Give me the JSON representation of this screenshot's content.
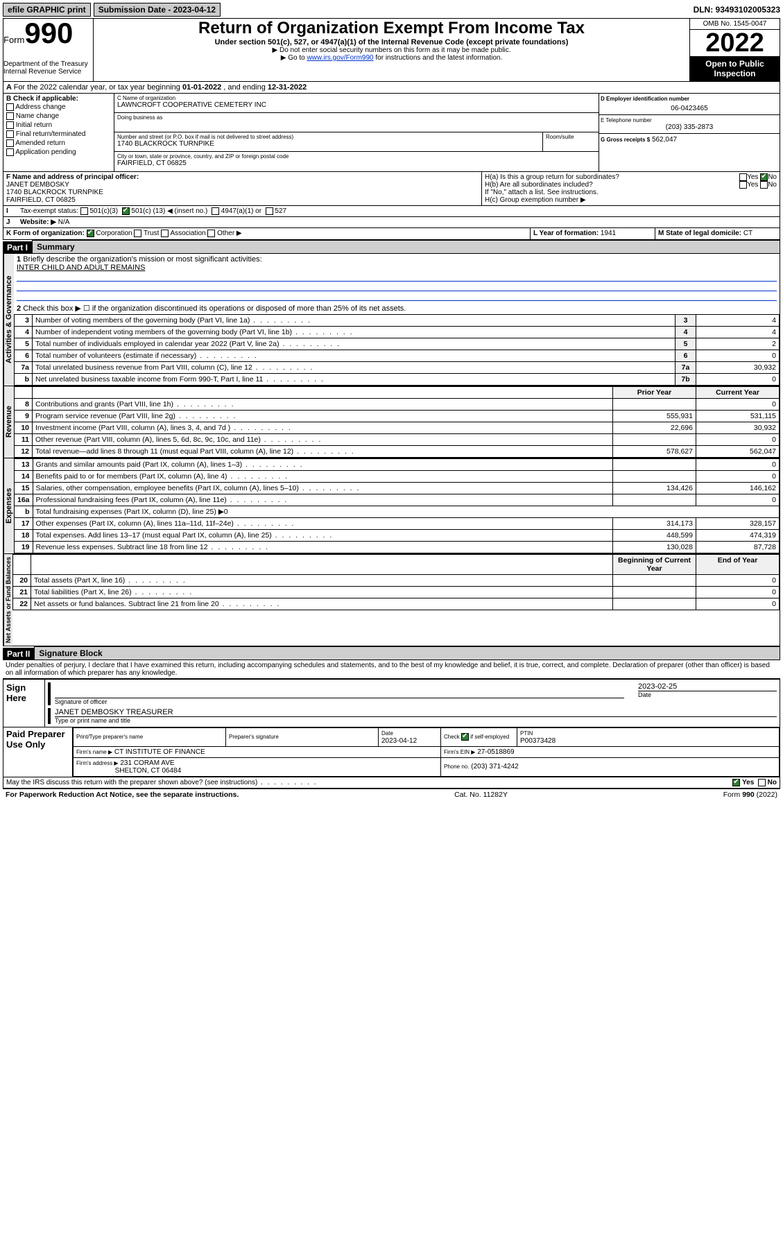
{
  "top": {
    "efile": "efile GRAPHIC print",
    "sub_label": "Submission Date - 2023-04-12",
    "dln": "DLN: 93493102005323"
  },
  "header": {
    "form_word": "Form",
    "form_num": "990",
    "dept": "Department of the Treasury\nInternal Revenue Service",
    "title": "Return of Organization Exempt From Income Tax",
    "sub1": "Under section 501(c), 527, or 4947(a)(1) of the Internal Revenue Code (except private foundations)",
    "sub2": "▶ Do not enter social security numbers on this form as it may be made public.",
    "sub3_pre": "▶ Go to ",
    "sub3_link": "www.irs.gov/Form990",
    "sub3_post": " for instructions and the latest information.",
    "omb": "OMB No. 1545-0047",
    "year": "2022",
    "open": "Open to Public Inspection"
  },
  "rowA": {
    "text_pre": "For the 2022 calendar year, or tax year beginning ",
    "begin": "01-01-2022",
    "mid": " , and ending ",
    "end": "12-31-2022"
  },
  "boxB": {
    "hdr": "B Check if applicable:",
    "opts": [
      "Address change",
      "Name change",
      "Initial return",
      "Final return/terminated",
      "Amended return",
      "Application pending"
    ]
  },
  "boxC": {
    "name_lbl": "C Name of organization",
    "name": "LAWNCROFT COOPERATIVE CEMETERY INC",
    "dba_lbl": "Doing business as",
    "dba": "",
    "addr_lbl": "Number and street (or P.O. box if mail is not delivered to street address)",
    "room_lbl": "Room/suite",
    "addr": "1740 BLACKROCK TURNPIKE",
    "city_lbl": "City or town, state or province, country, and ZIP or foreign postal code",
    "city": "FAIRFIELD, CT  06825"
  },
  "boxD": {
    "lbl": "D Employer identification number",
    "val": "06-0423465"
  },
  "boxE": {
    "lbl": "E Telephone number",
    "val": "(203) 335-2873"
  },
  "boxG": {
    "lbl": "G Gross receipts $",
    "val": "562,047"
  },
  "boxF": {
    "lbl": "F Name and address of principal officer:",
    "name": "JANET DEMBOSKY",
    "addr1": "1740 BLACKROCK TURNPIKE",
    "addr2": "FAIRFIELD, CT  06825"
  },
  "boxH": {
    "ha": "H(a)  Is this a group return for subordinates?",
    "hb": "H(b)  Are all subordinates included?",
    "hb_note": "If \"No,\" attach a list. See instructions.",
    "hc": "H(c)  Group exemption number ▶",
    "yes": "Yes",
    "no": "No"
  },
  "rowI": {
    "lbl": "Tax-exempt status:",
    "o1": "501(c)(3)",
    "o2_pre": "501(c) (",
    "o2_num": "13",
    "o2_post": ") ◀ (insert no.)",
    "o3": "4947(a)(1) or",
    "o4": "527"
  },
  "rowJ": {
    "lbl": "Website: ▶",
    "val": "N/A"
  },
  "rowK": {
    "lbl": "K Form of organization:",
    "o1": "Corporation",
    "o2": "Trust",
    "o3": "Association",
    "o4": "Other ▶"
  },
  "rowL": {
    "lbl": "L Year of formation:",
    "val": "1941"
  },
  "rowM": {
    "lbl": "M State of legal domicile:",
    "val": "CT"
  },
  "part1": {
    "hdr": "Part I",
    "title": "Summary",
    "q1": "Briefly describe the organization's mission or most significant activities:",
    "mission": "INTER CHILD AND ADULT REMAINS",
    "q2": "Check this box ▶ ☐  if the organization discontinued its operations or disposed of more than 25% of its net assets.",
    "vert_ag": "Activities & Governance",
    "vert_rev": "Revenue",
    "vert_exp": "Expenses",
    "vert_net": "Net Assets or Fund Balances",
    "hdr_prior": "Prior Year",
    "hdr_curr": "Current Year",
    "hdr_beg": "Beginning of Current Year",
    "hdr_end": "End of Year",
    "lines_gov": [
      {
        "n": "3",
        "d": "Number of voting members of the governing body (Part VI, line 1a)",
        "box": "3",
        "v": "4"
      },
      {
        "n": "4",
        "d": "Number of independent voting members of the governing body (Part VI, line 1b)",
        "box": "4",
        "v": "4"
      },
      {
        "n": "5",
        "d": "Total number of individuals employed in calendar year 2022 (Part V, line 2a)",
        "box": "5",
        "v": "2"
      },
      {
        "n": "6",
        "d": "Total number of volunteers (estimate if necessary)",
        "box": "6",
        "v": "0"
      },
      {
        "n": "7a",
        "d": "Total unrelated business revenue from Part VIII, column (C), line 12",
        "box": "7a",
        "v": "30,932"
      },
      {
        "n": "b",
        "d": "Net unrelated business taxable income from Form 990-T, Part I, line 11",
        "box": "7b",
        "v": "0"
      }
    ],
    "lines_rev": [
      {
        "n": "8",
        "d": "Contributions and grants (Part VIII, line 1h)",
        "p": "",
        "c": "0"
      },
      {
        "n": "9",
        "d": "Program service revenue (Part VIII, line 2g)",
        "p": "555,931",
        "c": "531,115"
      },
      {
        "n": "10",
        "d": "Investment income (Part VIII, column (A), lines 3, 4, and 7d )",
        "p": "22,696",
        "c": "30,932"
      },
      {
        "n": "11",
        "d": "Other revenue (Part VIII, column (A), lines 5, 6d, 8c, 9c, 10c, and 11e)",
        "p": "",
        "c": "0"
      },
      {
        "n": "12",
        "d": "Total revenue—add lines 8 through 11 (must equal Part VIII, column (A), line 12)",
        "p": "578,627",
        "c": "562,047"
      }
    ],
    "lines_exp": [
      {
        "n": "13",
        "d": "Grants and similar amounts paid (Part IX, column (A), lines 1–3)",
        "p": "",
        "c": "0"
      },
      {
        "n": "14",
        "d": "Benefits paid to or for members (Part IX, column (A), line 4)",
        "p": "",
        "c": "0"
      },
      {
        "n": "15",
        "d": "Salaries, other compensation, employee benefits (Part IX, column (A), lines 5–10)",
        "p": "134,426",
        "c": "146,162"
      },
      {
        "n": "16a",
        "d": "Professional fundraising fees (Part IX, column (A), line 11e)",
        "p": "",
        "c": "0"
      },
      {
        "n": "b",
        "d": "Total fundraising expenses (Part IX, column (D), line 25) ▶0",
        "p": "-",
        "c": "-"
      },
      {
        "n": "17",
        "d": "Other expenses (Part IX, column (A), lines 11a–11d, 11f–24e)",
        "p": "314,173",
        "c": "328,157"
      },
      {
        "n": "18",
        "d": "Total expenses. Add lines 13–17 (must equal Part IX, column (A), line 25)",
        "p": "448,599",
        "c": "474,319"
      },
      {
        "n": "19",
        "d": "Revenue less expenses. Subtract line 18 from line 12",
        "p": "130,028",
        "c": "87,728"
      }
    ],
    "lines_net": [
      {
        "n": "20",
        "d": "Total assets (Part X, line 16)",
        "p": "",
        "c": "0"
      },
      {
        "n": "21",
        "d": "Total liabilities (Part X, line 26)",
        "p": "",
        "c": "0"
      },
      {
        "n": "22",
        "d": "Net assets or fund balances. Subtract line 21 from line 20",
        "p": "",
        "c": "0"
      }
    ]
  },
  "part2": {
    "hdr": "Part II",
    "title": "Signature Block",
    "penalty": "Under penalties of perjury, I declare that I have examined this return, including accompanying schedules and statements, and to the best of my knowledge and belief, it is true, correct, and complete. Declaration of preparer (other than officer) is based on all information of which preparer has any knowledge.",
    "sign_here": "Sign Here",
    "sig_officer_lbl": "Signature of officer",
    "sig_date": "2023-02-25",
    "date_lbl": "Date",
    "officer_name": "JANET DEMBOSKY  TREASURER",
    "type_lbl": "Type or print name and title",
    "paid_lbl": "Paid Preparer Use Only",
    "prep_name_lbl": "Print/Type preparer's name",
    "prep_sig_lbl": "Preparer's signature",
    "prep_date_lbl": "Date",
    "prep_date": "2023-04-12",
    "check_self_lbl": "Check ☑ if self-employed",
    "ptin_lbl": "PTIN",
    "ptin": "P00373428",
    "firm_name_lbl": "Firm's name   ▶",
    "firm_name": "CT INSTITUTE OF FINANCE",
    "firm_ein_lbl": "Firm's EIN ▶",
    "firm_ein": "27-0518869",
    "firm_addr_lbl": "Firm's address ▶",
    "firm_addr1": "231 CORAM AVE",
    "firm_addr2": "SHELTON, CT  06484",
    "phone_lbl": "Phone no.",
    "phone": "(203) 371-4242",
    "discuss": "May the IRS discuss this return with the preparer shown above? (see instructions)"
  },
  "footer": {
    "pra": "For Paperwork Reduction Act Notice, see the separate instructions.",
    "cat": "Cat. No. 11282Y",
    "form": "Form 990 (2022)"
  }
}
